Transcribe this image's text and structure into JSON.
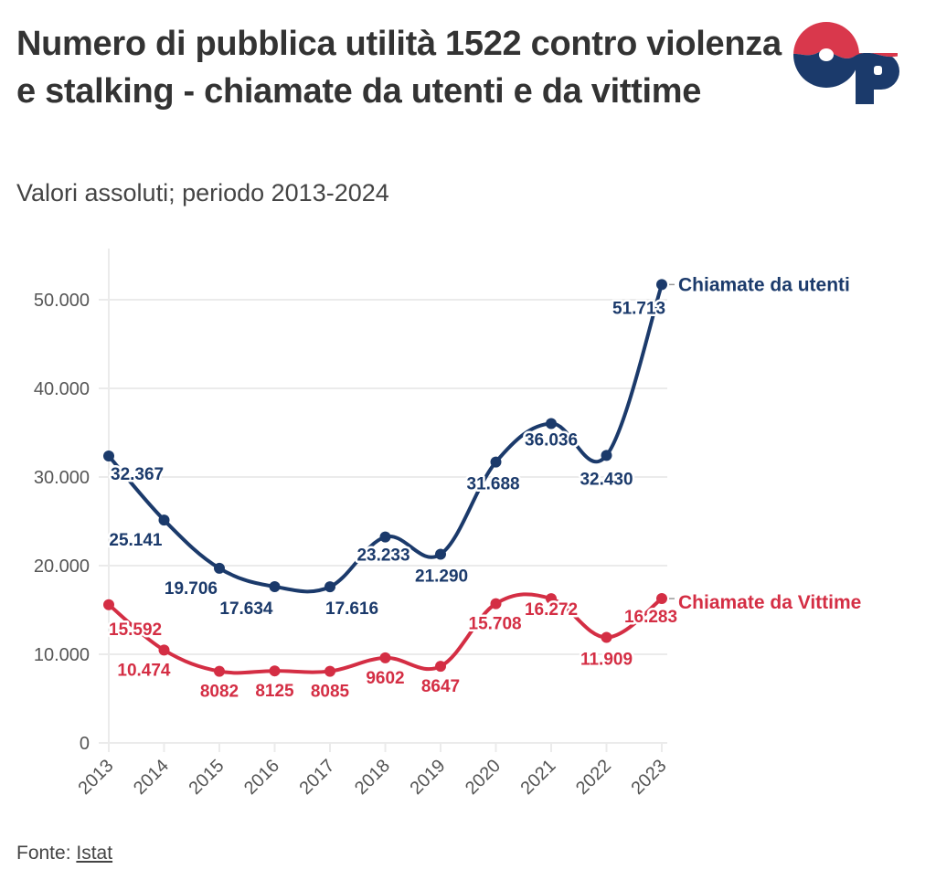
{
  "header": {
    "title": "Numero di pubblica utilità 1522 contro violenza e stalking - chiamate da utenti e da vittime",
    "subtitle": "Valori assoluti; periodo 2013-2024",
    "logo": "openpolis-op-logo"
  },
  "footer": {
    "source_prefix": "Fonte:",
    "source_link": "Istat"
  },
  "colors": {
    "utenti": "#1b3a6b",
    "vittime": "#d42e44",
    "grid": "#ebebeb",
    "axis_text": "#555555"
  },
  "chart_data": {
    "type": "line",
    "title": "Numero di pubblica utilità 1522 contro violenza e stalking - chiamate da utenti e da vittime",
    "subtitle": "Valori assoluti; periodo 2013-2024",
    "xlabel": "",
    "ylabel": "",
    "x": [
      "2013",
      "2014",
      "2015",
      "2016",
      "2017",
      "2018",
      "2019",
      "2020",
      "2021",
      "2022",
      "2023"
    ],
    "ylim": [
      0,
      55000
    ],
    "yticks": [
      0,
      10000,
      20000,
      30000,
      40000,
      50000
    ],
    "ytick_labels": [
      "0",
      "10.000",
      "20.000",
      "30.000",
      "40.000",
      "50.000"
    ],
    "grid": "horizontal",
    "legend": "direct labels at line ends (right)",
    "curve": "smooth",
    "series": [
      {
        "name": "Chiamate da utenti",
        "color": "#1b3a6b",
        "values": [
          32367,
          25141,
          19706,
          17634,
          17616,
          23233,
          21290,
          31688,
          36036,
          32430,
          51713
        ],
        "labels": [
          "32.367",
          "25.141",
          "19.706",
          "17.634",
          "17.616",
          "23.233",
          "21.290",
          "31.688",
          "36.036",
          "32.430",
          "51.713"
        ]
      },
      {
        "name": "Chiamate da Vittime",
        "color": "#d42e44",
        "values": [
          15592,
          10474,
          8082,
          8125,
          8085,
          9602,
          8647,
          15708,
          16272,
          11909,
          16283
        ],
        "labels": [
          "15.592",
          "10.474",
          "8082",
          "8125",
          "8085",
          "9602",
          "8647",
          "15.708",
          "16.272",
          "11.909",
          "16.283"
        ]
      }
    ]
  }
}
